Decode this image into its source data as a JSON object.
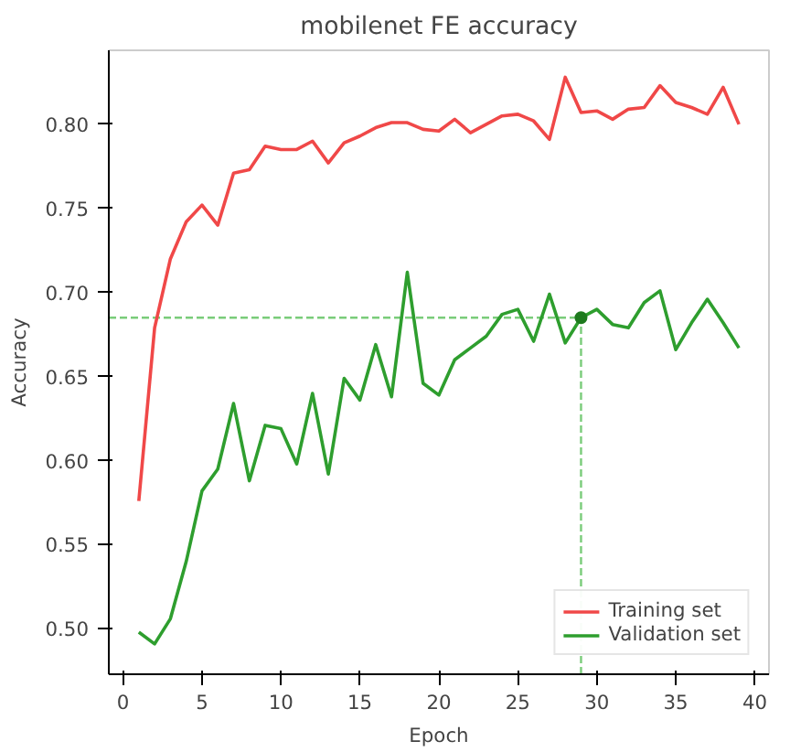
{
  "chart_data": {
    "type": "line",
    "title": "mobilenet FE accuracy",
    "xlabel": "Epoch",
    "ylabel": "Accuracy",
    "x": [
      1,
      2,
      3,
      4,
      5,
      6,
      7,
      8,
      9,
      10,
      11,
      12,
      13,
      14,
      15,
      16,
      17,
      18,
      19,
      20,
      21,
      22,
      23,
      24,
      25,
      26,
      27,
      28,
      29,
      30,
      31,
      32,
      33,
      34,
      35,
      36,
      37,
      38,
      39
    ],
    "series": [
      {
        "name": "Training set",
        "color": "#f04848",
        "values": [
          0.576,
          0.679,
          0.72,
          0.742,
          0.752,
          0.74,
          0.771,
          0.773,
          0.787,
          0.785,
          0.785,
          0.79,
          0.777,
          0.789,
          0.793,
          0.798,
          0.801,
          0.801,
          0.797,
          0.796,
          0.803,
          0.795,
          0.8,
          0.805,
          0.806,
          0.802,
          0.791,
          0.828,
          0.807,
          0.808,
          0.803,
          0.809,
          0.81,
          0.823,
          0.813,
          0.81,
          0.806,
          0.822,
          0.8
        ]
      },
      {
        "name": "Validation set",
        "color": "#2e9e2e",
        "values": [
          0.498,
          0.491,
          0.506,
          0.54,
          0.582,
          0.595,
          0.634,
          0.588,
          0.621,
          0.619,
          0.598,
          0.64,
          0.592,
          0.649,
          0.636,
          0.669,
          0.638,
          0.712,
          0.646,
          0.639,
          0.66,
          0.667,
          0.674,
          0.687,
          0.69,
          0.671,
          0.699,
          0.67,
          0.685,
          0.69,
          0.681,
          0.679,
          0.694,
          0.701,
          0.666,
          0.682,
          0.696,
          0.682,
          0.667
        ]
      },
      {
        "type": "scatter",
        "color": "#1e7a1e",
        "x": [
          29
        ],
        "values": [
          0.685
        ]
      }
    ],
    "ref_lines": [
      {
        "axis": "y",
        "value": 0.685,
        "color": "#7acc7a",
        "line_style": "dashed"
      },
      {
        "axis": "x",
        "value": 29,
        "color": "#7acc7a",
        "line_style": "dashed"
      }
    ],
    "xlim": [
      -0.9,
      40.9
    ],
    "ylim": [
      0.473,
      0.844
    ],
    "xticks": [
      0,
      5,
      10,
      15,
      20,
      25,
      30,
      35,
      40
    ],
    "yticks": [
      {
        "value": 0.5,
        "label": "0.50"
      },
      {
        "value": 0.55,
        "label": "0.55"
      },
      {
        "value": 0.6,
        "label": "0.60"
      },
      {
        "value": 0.65,
        "label": "0.65"
      },
      {
        "value": 0.7,
        "label": "0.70"
      },
      {
        "value": 0.75,
        "label": "0.75"
      },
      {
        "value": 0.8,
        "label": "0.80"
      }
    ],
    "legend": "bottom right",
    "grid": false
  }
}
